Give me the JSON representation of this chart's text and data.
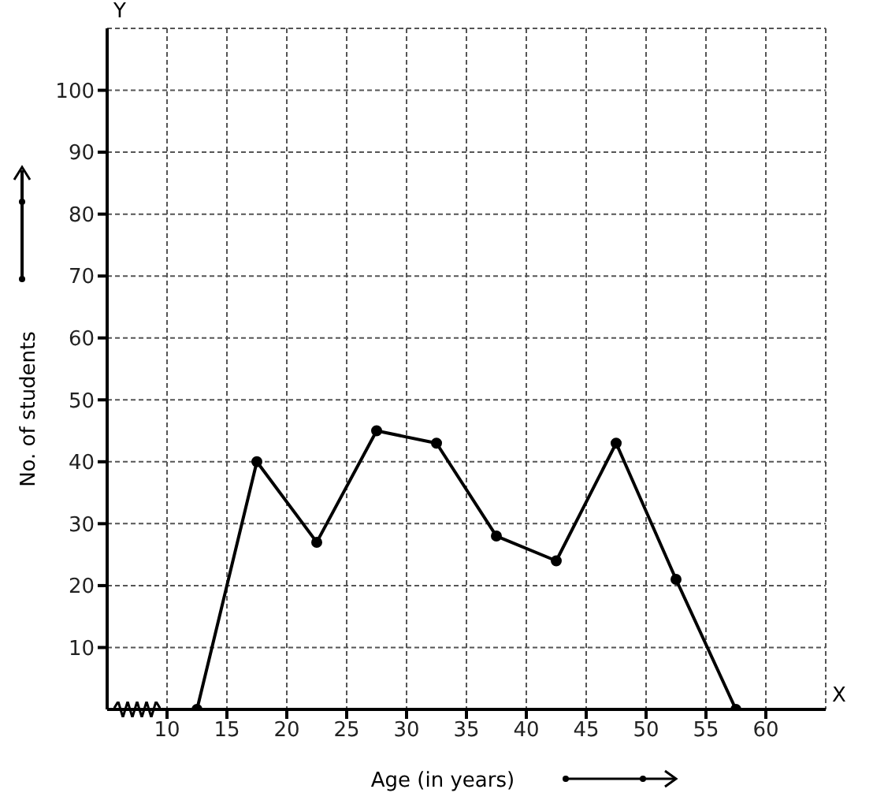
{
  "chart_data": {
    "type": "line",
    "xlabel": "Age (in years)",
    "ylabel": "No. of students",
    "annotations": [
      "X",
      "Y"
    ],
    "x": [
      12.5,
      17.5,
      22.5,
      27.5,
      32.5,
      37.5,
      42.5,
      47.5,
      52.5,
      57.5
    ],
    "series": [
      {
        "color": "#000000",
        "values": [
          0,
          40,
          27,
          45,
          43,
          28,
          24,
          43,
          21,
          0
        ]
      }
    ],
    "xlim": [
      5,
      65
    ],
    "ylim": [
      0,
      110
    ],
    "xticks": [
      10,
      15,
      20,
      25,
      30,
      35,
      40,
      45,
      50,
      55,
      60
    ],
    "yticks": [
      10,
      20,
      30,
      40,
      50,
      60,
      70,
      80,
      90,
      100
    ],
    "grid": true,
    "marker": "circle",
    "line_style": "solid"
  }
}
